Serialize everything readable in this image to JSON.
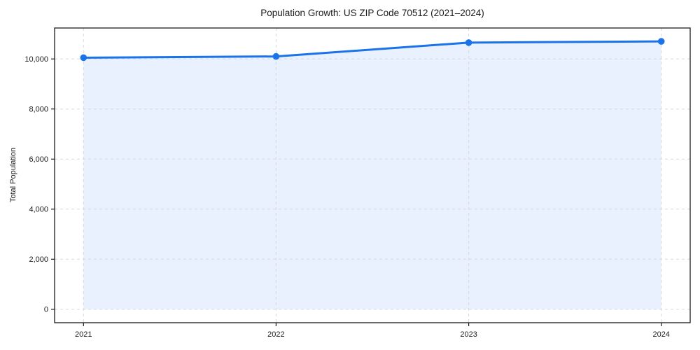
{
  "chart_data": {
    "type": "area",
    "title": "Population Growth: US ZIP Code 70512 (2021–2024)",
    "xlabel": "",
    "ylabel": "Total Population",
    "x": [
      2021,
      2022,
      2023,
      2024
    ],
    "series": [
      {
        "name": "Total Population",
        "values": [
          10050,
          10100,
          10650,
          10700
        ]
      }
    ],
    "x_tick_labels": [
      "2021",
      "2022",
      "2023",
      "2024"
    ],
    "y_ticks": [
      0,
      2000,
      4000,
      6000,
      8000,
      10000
    ],
    "y_tick_labels": [
      "0",
      "2,000",
      "4,000",
      "6,000",
      "8,000",
      "10,000"
    ],
    "xlim": [
      2020.85,
      2024.15
    ],
    "ylim": [
      -535,
      11235
    ],
    "grid": true,
    "grid_style": "dashed",
    "legend": "none",
    "colors": {
      "line": "#1a73e8",
      "marker": "#1a73e8",
      "area_fill": "rgba(26,115,232,0.10)",
      "grid_line": "#d9d9d9",
      "spine": "#1a1a1a",
      "text": "#1a1a1a",
      "background": "#ffffff"
    }
  }
}
